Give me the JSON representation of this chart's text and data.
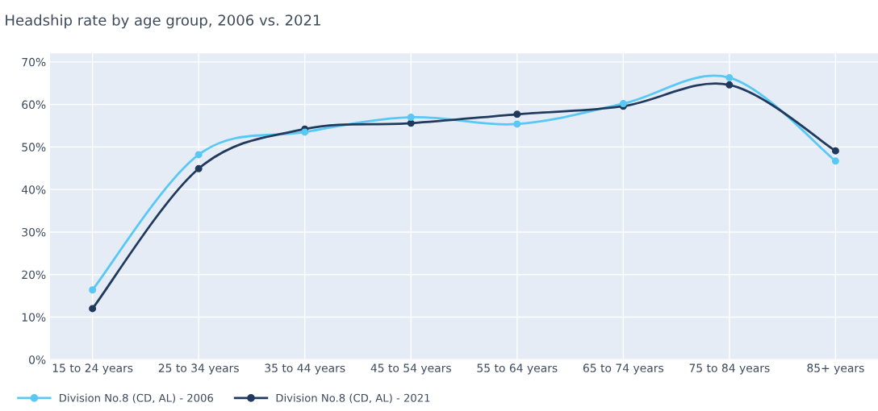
{
  "chart_data": {
    "type": "line",
    "title": "Headship rate by age group, 2006 vs. 2021",
    "categories": [
      "15 to 24 years",
      "25 to 34 years",
      "35 to 44 years",
      "45 to 54 years",
      "55 to 64 years",
      "65 to 74 years",
      "75 to 84 years",
      "85+ years"
    ],
    "series": [
      {
        "name": "Division No.8 (CD, AL) - 2006",
        "color": "#5ac8f5",
        "values": [
          16.4,
          48.2,
          53.5,
          57.0,
          55.4,
          60.2,
          66.3,
          46.7
        ]
      },
      {
        "name": "Division No.8 (CD, AL) - 2021",
        "color": "#1f3a5c",
        "values": [
          12.0,
          44.9,
          54.2,
          55.6,
          57.7,
          59.6,
          64.6,
          49.1
        ]
      }
    ],
    "ylim": [
      0,
      72
    ],
    "yticks": [
      {
        "value": 0,
        "label": "0%"
      },
      {
        "value": 10,
        "label": "10%"
      },
      {
        "value": 20,
        "label": "20%"
      },
      {
        "value": 30,
        "label": "30%"
      },
      {
        "value": 40,
        "label": "40%"
      },
      {
        "value": 50,
        "label": "50%"
      },
      {
        "value": 60,
        "label": "60%"
      },
      {
        "value": 70,
        "label": "70%"
      }
    ],
    "grid": true,
    "legend": "bottom left",
    "marker": "circle",
    "line_style": "solid"
  }
}
